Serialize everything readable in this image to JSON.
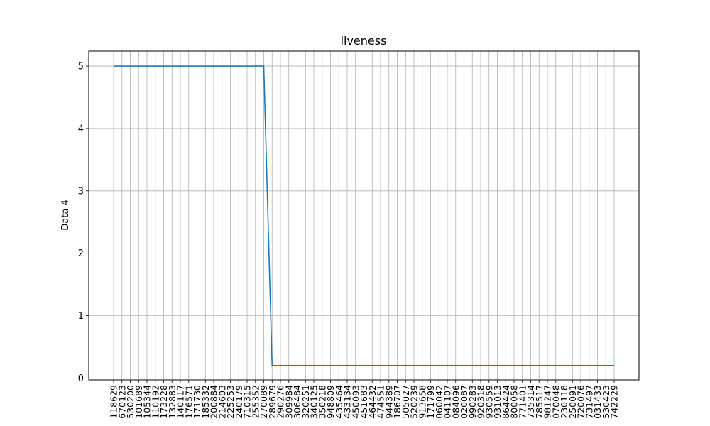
{
  "chart_data": {
    "type": "line",
    "title": "liveness",
    "xlabel": "",
    "ylabel": "Data 4",
    "ylim": [
      -0.03,
      5.24
    ],
    "yticks": [
      0,
      1,
      2,
      3,
      4,
      5
    ],
    "grid": true,
    "categories": [
      "118629",
      "670123",
      "530200",
      "101689",
      "105344",
      "110192",
      "173228",
      "132883",
      "140117",
      "176571",
      "171730",
      "185332",
      "200884",
      "214603",
      "225253",
      "240179",
      "710315",
      "255352",
      "270089",
      "289679",
      "290276",
      "309984",
      "306484",
      "320251",
      "340125",
      "350218",
      "948809",
      "435464",
      "433134",
      "450093",
      "451683",
      "464432",
      "474551",
      "944389",
      "186707",
      "505027",
      "520239",
      "913658",
      "171799",
      "060042",
      "041107",
      "084096",
      "020087",
      "990283",
      "920318",
      "930559",
      "931013",
      "864424",
      "800058",
      "771401",
      "735314",
      "785517",
      "981247",
      "070048",
      "230118",
      "250091",
      "720076",
      "731497",
      "031433",
      "530423",
      "742229"
    ],
    "series": [
      {
        "color": "#1f77b4",
        "values": [
          5,
          5,
          5,
          5,
          5,
          5,
          5,
          5,
          5,
          5,
          5,
          5,
          5,
          5,
          5,
          5,
          5,
          5,
          5,
          0.2,
          0.2,
          0.2,
          0.2,
          0.2,
          0.2,
          0.2,
          0.2,
          0.2,
          0.2,
          0.2,
          0.2,
          0.2,
          0.2,
          0.2,
          0.2,
          0.2,
          0.2,
          0.2,
          0.2,
          0.2,
          0.2,
          0.2,
          0.2,
          0.2,
          0.2,
          0.2,
          0.2,
          0.2,
          0.2,
          0.2,
          0.2,
          0.2,
          0.2,
          0.2,
          0.2,
          0.2,
          0.2,
          0.2,
          0.2,
          0.2,
          0.2
        ]
      }
    ]
  }
}
